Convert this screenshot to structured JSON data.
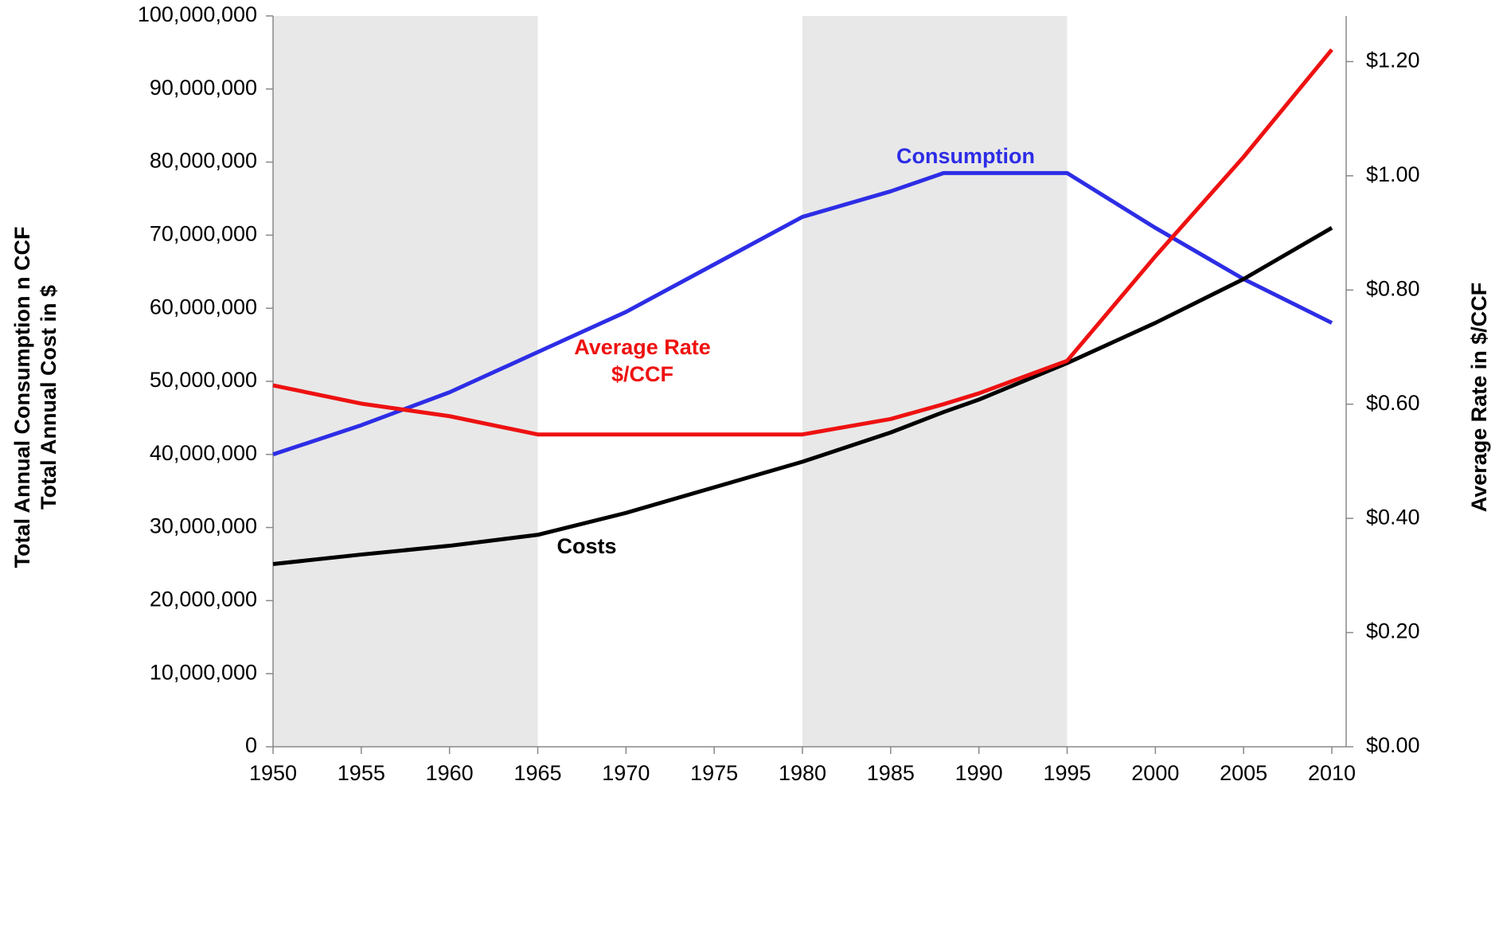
{
  "chart_data": {
    "type": "line",
    "y_axis_label": [
      "Total Annual Consumption n CCF",
      "Total Annual Cost in $"
    ],
    "y2_axis_label": "Average Rate in $/CCF",
    "x": [
      1950,
      1955,
      1960,
      1965,
      1970,
      1975,
      1980,
      1985,
      1988,
      1990,
      1995,
      2000,
      2005,
      2010
    ],
    "xlim": [
      1950,
      2010
    ],
    "xticks": [
      1950,
      1955,
      1960,
      1965,
      1970,
      1975,
      1980,
      1985,
      1990,
      1995,
      2000,
      2005,
      2010
    ],
    "ylim": [
      0,
      100000000
    ],
    "yticks": [
      0,
      {
        "value": 10000000,
        "label": "10,000,000"
      },
      {
        "value": 20000000,
        "label": "20,000,000"
      },
      {
        "value": 30000000,
        "label": "30,000,000"
      },
      {
        "value": 40000000,
        "label": "40,000,000"
      },
      {
        "value": 50000000,
        "label": "50,000,000"
      },
      {
        "value": 60000000,
        "label": "60,000,000"
      },
      {
        "value": 70000000,
        "label": "70,000,000"
      },
      {
        "value": 80000000,
        "label": "80,000,000"
      },
      {
        "value": 90000000,
        "label": "90,000,000"
      },
      {
        "value": 100000000,
        "label": "100,000,000"
      }
    ],
    "y2lim": [
      0,
      1.28
    ],
    "y2ticks": [
      {
        "value": 0,
        "label": "$0.00"
      },
      {
        "value": 0.2,
        "label": "$0.20"
      },
      {
        "value": 0.4,
        "label": "$0.40"
      },
      {
        "value": 0.6,
        "label": "$0.60"
      },
      {
        "value": 0.8,
        "label": "$0.80"
      },
      {
        "value": 1.0,
        "label": "$1.00"
      },
      {
        "value": 1.2,
        "label": "$1.20"
      }
    ],
    "shaded_ranges": [
      [
        1950,
        1965
      ],
      [
        1980,
        1995
      ]
    ],
    "shade_color": "#e8e8e8",
    "series": [
      {
        "name": "Consumption",
        "color": "#2d2de6",
        "values": [
          40000000,
          44000000,
          48500000,
          54000000,
          59500000,
          66000000,
          72500000,
          76000000,
          78500000,
          78500000,
          78500000,
          71000000,
          64000000,
          58000000
        ]
      },
      {
        "name": "Costs",
        "color": "#000000",
        "values": [
          25000000,
          26300000,
          27500000,
          29000000,
          32000000,
          35500000,
          39000000,
          43000000,
          45800000,
          47500000,
          52500000,
          58000000,
          64000000,
          71000000
        ]
      },
      {
        "name": "Average Rate $/CCF",
        "color": "#ee1111",
        "axis": "y2",
        "values": [
          0.633,
          0.601,
          0.579,
          0.547,
          0.547,
          0.547,
          0.547,
          0.574,
          0.6,
          0.619,
          0.676,
          0.859,
          1.033,
          1.221
        ]
      }
    ],
    "annotations": [
      {
        "lines": [
          "Consumption"
        ],
        "color": "#2d2de6"
      },
      {
        "lines": [
          "Costs"
        ],
        "color": "#000000"
      },
      {
        "lines": [
          "Average Rate",
          "$/CCF"
        ],
        "color": "#ee1111"
      }
    ]
  }
}
